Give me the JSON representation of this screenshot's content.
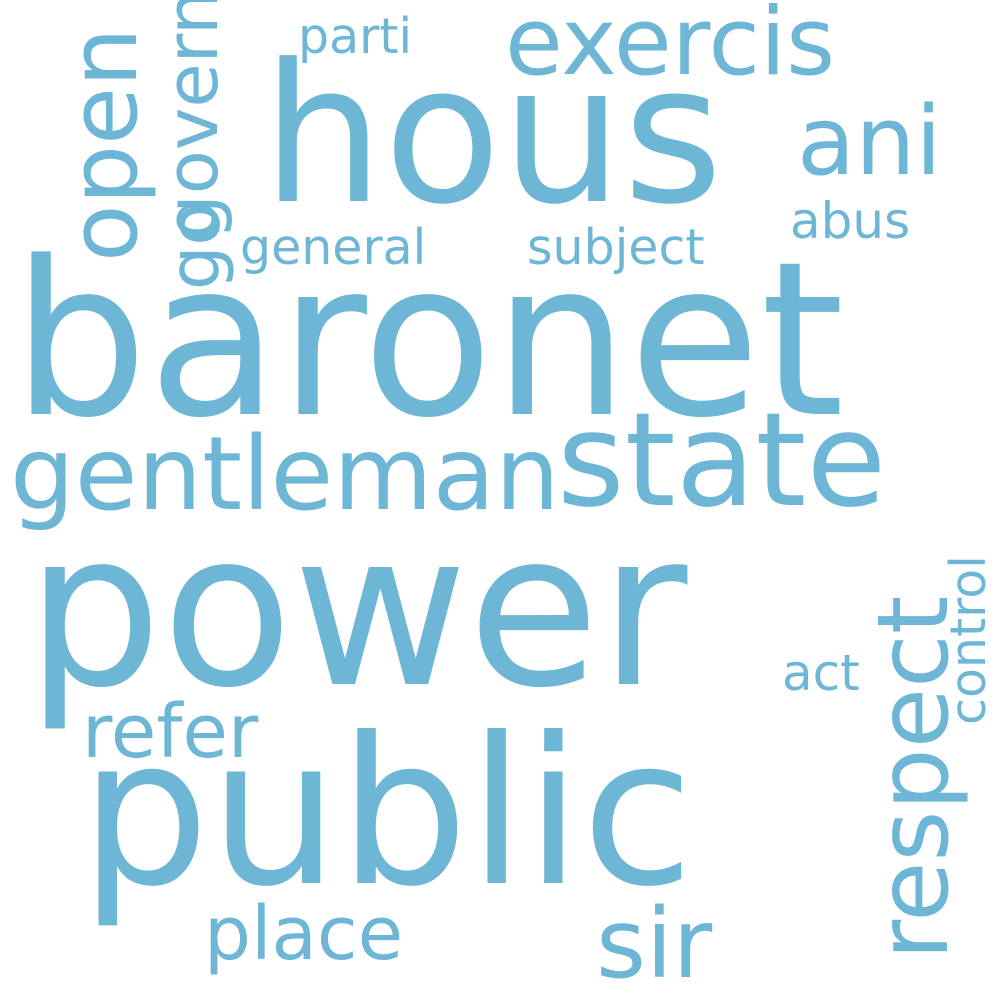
{
  "background": "#ffffff",
  "word_color": "#6db6d5",
  "words": {
    "baronet": "baronet",
    "power": "power",
    "public": "public",
    "hous": "hous",
    "state": "state",
    "gentleman": "gentleman",
    "respect": "respect",
    "exercis": "exercis",
    "ani": "ani",
    "open": "open",
    "govern": "govern",
    "go": "go",
    "general": "general",
    "subject": "subject",
    "abus": "abus",
    "parti": "parti",
    "refer": "refer",
    "place": "place",
    "sir": "sir",
    "act": "act",
    "control": "control"
  }
}
